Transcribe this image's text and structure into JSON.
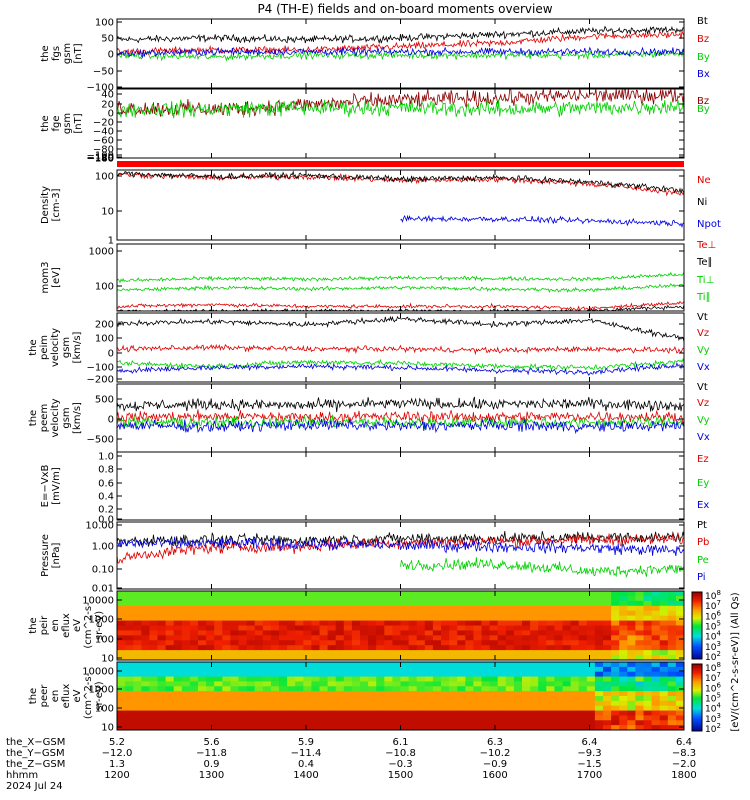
{
  "figure": {
    "title": "P4 (TH-E) fields and on-board moments overview",
    "colorbar_label": "[eV/(cm^2-s-sr-eV)] (All Qs)",
    "colorbar_ticks": [
      "10^8",
      "10^7",
      "10^6",
      "10^5",
      "10^4",
      "10^3",
      "10^2"
    ]
  },
  "panels": [
    {
      "id": "fgs",
      "ylabel": [
        "the",
        "fgs",
        "gsm",
        "[nT]"
      ],
      "ticks": [
        "100",
        "50",
        "0",
        "−50",
        "−100"
      ],
      "legend": [
        {
          "name": "Bt",
          "color": "#000000"
        },
        {
          "name": "Bz",
          "color": "#e00000"
        },
        {
          "name": "By",
          "color": "#00d000"
        },
        {
          "name": "Bx",
          "color": "#0000e0"
        }
      ]
    },
    {
      "id": "fge",
      "ylabel": [
        "the",
        "fge",
        "gsm",
        "[nT]"
      ],
      "ticks": [
        "40",
        "20",
        "0",
        "−20",
        "−40",
        "−60",
        "−80",
        "−100",
        "−120",
        "−140",
        "−160",
        "−180"
      ],
      "legend": [
        {
          "name": "Bz",
          "color": "#8b0000"
        },
        {
          "name": "By",
          "color": "#00d000"
        }
      ]
    },
    {
      "id": "density",
      "ylabel": [
        "Density",
        "[cm-3]"
      ],
      "ticks": [
        "100",
        "10",
        "1"
      ],
      "legend": [
        {
          "name": "Ne",
          "color": "#e00000"
        },
        {
          "name": "Ni",
          "color": "#000000"
        },
        {
          "name": "Npot",
          "color": "#0000e0"
        }
      ]
    },
    {
      "id": "temp",
      "ylabel": [
        "mom3",
        "[eV]"
      ],
      "ticks": [
        "1000",
        "100"
      ],
      "legend": [
        {
          "name": "Te⊥",
          "color": "#e00000"
        },
        {
          "name": "Te∥",
          "color": "#000000"
        },
        {
          "name": "Ti⊥",
          "color": "#00d000"
        },
        {
          "name": "Ti∥",
          "color": "#00d000"
        }
      ]
    },
    {
      "id": "vi",
      "ylabel": [
        "the",
        "peim",
        "velocity",
        "gsm",
        "[km/s]"
      ],
      "ticks": [
        "200",
        "100",
        "0",
        "−100",
        "−200"
      ],
      "legend": [
        {
          "name": "Vt",
          "color": "#000000"
        },
        {
          "name": "Vz",
          "color": "#e00000"
        },
        {
          "name": "Vy",
          "color": "#00d000"
        },
        {
          "name": "Vx",
          "color": "#0000e0"
        }
      ]
    },
    {
      "id": "ve",
      "ylabel": [
        "the",
        "peem",
        "velocity",
        "gsm",
        "[km/s]"
      ],
      "ticks": [
        "500",
        "0",
        "−500"
      ],
      "legend": [
        {
          "name": "Vt",
          "color": "#000000"
        },
        {
          "name": "Vz",
          "color": "#e00000"
        },
        {
          "name": "Vy",
          "color": "#00d000"
        },
        {
          "name": "Vx",
          "color": "#0000e0"
        }
      ]
    },
    {
      "id": "efield",
      "ylabel": [
        "E=−VxB",
        "[mV/m]"
      ],
      "ticks": [
        "1.0",
        "0.8",
        "0.6",
        "0.4",
        "0.2",
        "0.0"
      ],
      "legend": [
        {
          "name": "Ez",
          "color": "#e00000"
        },
        {
          "name": "Ey",
          "color": "#00d000"
        },
        {
          "name": "Ex",
          "color": "#0000e0"
        }
      ]
    },
    {
      "id": "pressure",
      "ylabel": [
        "Pressure",
        "[nPa]"
      ],
      "ticks": [
        "10.00",
        "1.00",
        "0.10",
        "0.01"
      ],
      "legend": [
        {
          "name": "Pt",
          "color": "#000000"
        },
        {
          "name": "Pb",
          "color": "#e00000"
        },
        {
          "name": "Pe",
          "color": "#00d000"
        },
        {
          "name": "Pi",
          "color": "#0000e0"
        }
      ]
    },
    {
      "id": "peir",
      "ylabel": [
        "the",
        "peir",
        "en",
        "eflux",
        "eV",
        "(cm^2-s-",
        "sr-eV)"
      ],
      "ticks": [
        "10000",
        "1000",
        "100",
        "10"
      ],
      "legend": []
    },
    {
      "id": "peer",
      "ylabel": [
        "the",
        "peer",
        "en",
        "eflux",
        "eV",
        "(cm^2-s-",
        "sr-eV)"
      ],
      "ticks": [
        "10000",
        "1000",
        "100",
        "10"
      ],
      "legend": []
    }
  ],
  "xaxis": {
    "rows": [
      {
        "label": "the_X−GSM",
        "values": [
          "5.2",
          "5.6",
          "5.9",
          "6.1",
          "6.3",
          "6.4",
          "6.4"
        ]
      },
      {
        "label": "the_Y−GSM",
        "values": [
          "−12.0",
          "−11.8",
          "−11.4",
          "−10.8",
          "−10.2",
          "−9.3",
          "−8.3"
        ]
      },
      {
        "label": "the_Z−GSM",
        "values": [
          "1.3",
          "0.9",
          "0.4",
          "−0.3",
          "−0.9",
          "−1.5",
          "−2.0"
        ]
      },
      {
        "label": "hhmm",
        "values": [
          "1200",
          "1300",
          "1400",
          "1500",
          "1600",
          "1700",
          "1800"
        ]
      }
    ],
    "date": "2024 Jul 24"
  },
  "chart_data": {
    "type": "line",
    "title": "P4 (TH-E) fields and on-board moments overview",
    "x": [
      "1200",
      "1300",
      "1400",
      "1500",
      "1600",
      "1700",
      "1800"
    ],
    "xlabel": "hhmm",
    "date": "2024 Jul 24",
    "panels": [
      {
        "name": "the fgs gsm [nT]",
        "ylim": [
          -100,
          100
        ],
        "series": [
          {
            "name": "Bt",
            "values": [
              40,
              45,
              40,
              45,
              55,
              65,
              70
            ]
          },
          {
            "name": "Bz",
            "values": [
              5,
              10,
              10,
              20,
              30,
              50,
              55
            ]
          },
          {
            "name": "By",
            "values": [
              -5,
              -10,
              -5,
              -5,
              -5,
              -5,
              0
            ]
          },
          {
            "name": "Bx",
            "values": [
              0,
              5,
              5,
              5,
              5,
              5,
              5
            ]
          }
        ]
      },
      {
        "name": "the fge gsm [nT]",
        "ylim": [
          -180,
          40
        ],
        "series": [
          {
            "name": "Bz",
            "values": [
              -20,
              -25,
              -10,
              5,
              10,
              20,
              20
            ]
          },
          {
            "name": "By",
            "values": [
              -25,
              -25,
              -20,
              -20,
              -25,
              -20,
              -15
            ]
          }
        ]
      },
      {
        "name": "Density [cm-3]",
        "log": true,
        "ylim": [
          1,
          100
        ],
        "series": [
          {
            "name": "Ne",
            "values": [
              75,
              60,
              65,
              50,
              55,
              40,
              20
            ]
          },
          {
            "name": "Ni",
            "values": [
              80,
              65,
              70,
              55,
              60,
              45,
              25
            ]
          },
          {
            "name": "Npot",
            "values": [
              null,
              null,
              null,
              4,
              4,
              3.5,
              3
            ]
          }
        ]
      },
      {
        "name": "mom3 [eV]",
        "log": true,
        "ylim": [
          30,
          2000
        ],
        "series": [
          {
            "name": "Te⊥",
            "values": [
              40,
              45,
              40,
              40,
              40,
              35,
              50
            ]
          },
          {
            "name": "Te∥",
            "values": [
              30,
              30,
              30,
              30,
              30,
              30,
              40
            ]
          },
          {
            "name": "Ti⊥",
            "values": [
              200,
              230,
              220,
              240,
              230,
              220,
              300
            ]
          },
          {
            "name": "Ti∥",
            "values": [
              110,
              130,
              120,
              130,
              120,
              110,
              150
            ]
          }
        ]
      },
      {
        "name": "the peim velocity gsm [km/s]",
        "ylim": [
          -220,
          260
        ],
        "series": [
          {
            "name": "Vt",
            "values": [
              190,
              200,
              180,
              220,
              180,
              210,
              80
            ]
          },
          {
            "name": "Vz",
            "values": [
              10,
              20,
              10,
              10,
              0,
              10,
              0
            ]
          },
          {
            "name": "Vy",
            "values": [
              -90,
              -110,
              -80,
              -90,
              -110,
              -120,
              -80
            ]
          },
          {
            "name": "Vx",
            "values": [
              -140,
              -120,
              -110,
              -120,
              -140,
              -150,
              -100
            ]
          }
        ]
      },
      {
        "name": "the peem velocity gsm [km/s]",
        "ylim": [
          -700,
          700
        ],
        "series": [
          {
            "name": "Vt",
            "values": [
              250,
              280,
              260,
              300,
              280,
              300,
              250
            ]
          },
          {
            "name": "Vz",
            "values": [
              20,
              30,
              20,
              30,
              20,
              30,
              20
            ]
          },
          {
            "name": "Vy",
            "values": [
              -80,
              -100,
              -80,
              -100,
              -80,
              -100,
              -90
            ]
          },
          {
            "name": "Vx",
            "values": [
              -150,
              -180,
              -140,
              -170,
              -150,
              -180,
              -160
            ]
          }
        ]
      },
      {
        "name": "E=−VxB [mV/m]",
        "ylim": [
          0,
          1.0
        ],
        "series": []
      },
      {
        "name": "Pressure [nPa]",
        "log": true,
        "ylim": [
          0.01,
          10
        ],
        "series": [
          {
            "name": "Pt",
            "values": [
              1.4,
              1.6,
              1.5,
              1.8,
              1.8,
              2.0,
              2.1
            ]
          },
          {
            "name": "Pb",
            "values": [
              0.2,
              0.7,
              0.8,
              1.2,
              1.3,
              1.6,
              1.7
            ]
          },
          {
            "name": "Pe",
            "values": [
              null,
              null,
              null,
              0.12,
              0.13,
              0.06,
              0.08
            ]
          },
          {
            "name": "Pi",
            "values": [
              1.1,
              1.1,
              1.0,
              0.9,
              0.8,
              0.7,
              0.5
            ]
          }
        ]
      },
      {
        "name": "the peir en eflux",
        "type": "heatmap",
        "log": true,
        "ylim": [
          5,
          30000
        ]
      },
      {
        "name": "the peer en eflux",
        "type": "heatmap",
        "log": true,
        "ylim": [
          5,
          30000
        ]
      }
    ]
  }
}
